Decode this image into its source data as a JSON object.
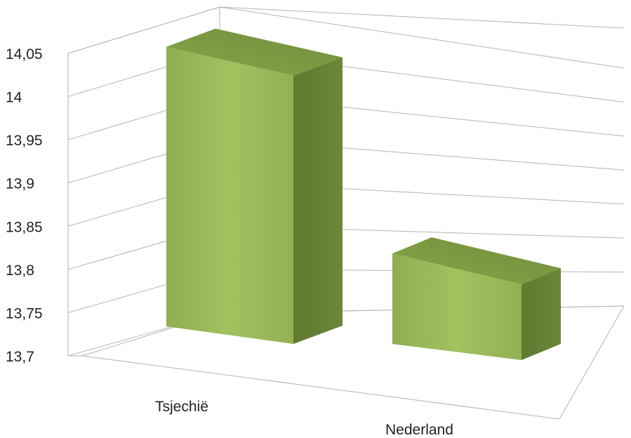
{
  "chart_data": {
    "type": "bar",
    "title": "",
    "xlabel": "",
    "ylabel": "",
    "categories": [
      "Tsjechië",
      "Nederland"
    ],
    "values": [
      14.04,
      13.81
    ],
    "ylim": [
      13.7,
      14.05
    ],
    "yticks": [
      "14,05",
      "14",
      "13,95",
      "13,9",
      "13,85",
      "13,8",
      "13,75",
      "13,7"
    ],
    "grid": true,
    "legend": "none",
    "style": "3d-column",
    "colors": {
      "bar_front": "#9bbb59",
      "bar_top": "#7f9c44",
      "bar_side": "#647d35",
      "grid": "#b3b3b3"
    }
  }
}
